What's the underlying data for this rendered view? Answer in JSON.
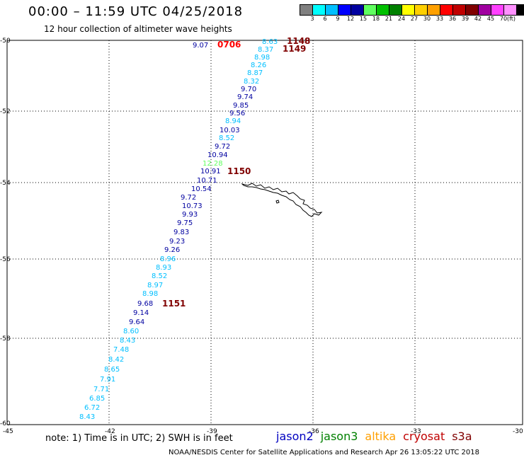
{
  "title": "00:00 – 11:59 UTC 04/25/2018",
  "subtitle": "12 hour collection of altimeter wave heights",
  "scale": {
    "unit": "(ft)",
    "colors": [
      "#808080",
      "#00ffff",
      "#00bfff",
      "#0000ff",
      "#0000a0",
      "#60ff60",
      "#00c000",
      "#008000",
      "#ffff00",
      "#ffd000",
      "#ffa000",
      "#ff0000",
      "#c00000",
      "#800000",
      "#a000a0",
      "#ff40ff",
      "#ff90ff",
      "#000000"
    ],
    "labels": [
      "3",
      "6",
      "9",
      "12",
      "15",
      "18",
      "21",
      "24",
      "27",
      "30",
      "33",
      "36",
      "39",
      "42",
      "45",
      "70"
    ]
  },
  "axes": {
    "lon_ticks": [
      "-45",
      "-42",
      "-39",
      "-36",
      "-33",
      "-30"
    ],
    "lat_ticks": [
      "-50",
      "-52",
      "-54",
      "-56",
      "-58",
      "-60"
    ]
  },
  "track_values": [
    {
      "text": "8.63",
      "color": "#00bfff"
    },
    {
      "text": "8.37",
      "color": "#00bfff"
    },
    {
      "text": "8.98",
      "color": "#00bfff"
    },
    {
      "text": "8.26",
      "color": "#00bfff"
    },
    {
      "text": "8.87",
      "color": "#00bfff"
    },
    {
      "text": "8.32",
      "color": "#00bfff"
    },
    {
      "text": "9.70",
      "color": "#0000a0"
    },
    {
      "text": "9.74",
      "color": "#0000a0"
    },
    {
      "text": "9.85",
      "color": "#0000a0"
    },
    {
      "text": "9.56",
      "color": "#0000a0"
    },
    {
      "text": "8.94",
      "color": "#00bfff"
    },
    {
      "text": "10.03",
      "color": "#0000a0"
    },
    {
      "text": "8.52",
      "color": "#00bfff"
    },
    {
      "text": "9.72",
      "color": "#0000a0"
    },
    {
      "text": "10.94",
      "color": "#0000a0"
    },
    {
      "text": "12.28",
      "color": "#60ff60"
    },
    {
      "text": "10.91",
      "color": "#0000a0"
    },
    {
      "text": "10.71",
      "color": "#0000a0"
    },
    {
      "text": "10.54",
      "color": "#0000a0"
    },
    {
      "text": "9.72",
      "color": "#0000a0"
    },
    {
      "text": "10.73",
      "color": "#0000a0"
    },
    {
      "text": "9.93",
      "color": "#0000a0"
    },
    {
      "text": "9.75",
      "color": "#0000a0"
    },
    {
      "text": "9.83",
      "color": "#0000a0"
    },
    {
      "text": "9.23",
      "color": "#0000a0"
    },
    {
      "text": "9.26",
      "color": "#0000a0"
    },
    {
      "text": "8.96",
      "color": "#00bfff"
    },
    {
      "text": "8.93",
      "color": "#00bfff"
    },
    {
      "text": "8.52",
      "color": "#00bfff"
    },
    {
      "text": "8.97",
      "color": "#00bfff"
    },
    {
      "text": "8.98",
      "color": "#00bfff"
    },
    {
      "text": "9.68",
      "color": "#0000a0"
    },
    {
      "text": "9.14",
      "color": "#0000a0"
    },
    {
      "text": "9.64",
      "color": "#0000a0"
    },
    {
      "text": "8.60",
      "color": "#00bfff"
    },
    {
      "text": "8.43",
      "color": "#00bfff"
    },
    {
      "text": "7.48",
      "color": "#00bfff"
    },
    {
      "text": "8.42",
      "color": "#00bfff"
    },
    {
      "text": "8.65",
      "color": "#00bfff"
    },
    {
      "text": "7.91",
      "color": "#00bfff"
    },
    {
      "text": "7.71",
      "color": "#00bfff"
    },
    {
      "text": "6.85",
      "color": "#00bfff"
    },
    {
      "text": "6.72",
      "color": "#00bfff"
    },
    {
      "text": "8.43",
      "color": "#00bfff"
    }
  ],
  "extra_values": [
    {
      "text": "9.07",
      "color": "#0000a0"
    }
  ],
  "times": [
    {
      "text": "0706",
      "color": "#ff0000"
    },
    {
      "text": "1148",
      "color": "#800000"
    },
    {
      "text": "1149",
      "color": "#800000"
    },
    {
      "text": "1150",
      "color": "#800000"
    },
    {
      "text": "1151",
      "color": "#800000"
    }
  ],
  "note": "note:  1) Time is in UTC;  2) SWH is in feet",
  "satellites": [
    {
      "name": "jason2",
      "color": "#0000c0"
    },
    {
      "name": "jason3",
      "color": "#008000"
    },
    {
      "name": "altika",
      "color": "#ffa000"
    },
    {
      "name": "cryosat",
      "color": "#c00000"
    },
    {
      "name": "s3a",
      "color": "#800000"
    }
  ],
  "credit": "NOAA/NESDIS Center for Satellite Applications and Research    Apr 26 13:05:22 UTC 2018"
}
